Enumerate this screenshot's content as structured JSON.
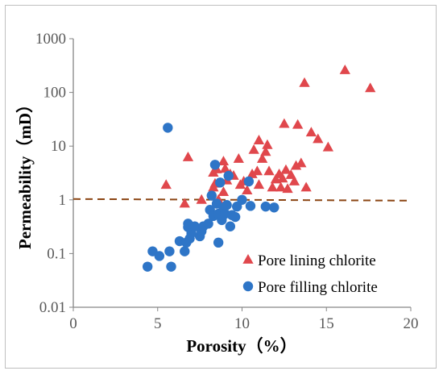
{
  "chart_data": {
    "type": "scatter",
    "xlabel": "Porosity（%）",
    "ylabel": "Permeability（mD）",
    "xlim": [
      0,
      20
    ],
    "ylim": [
      0.01,
      1000
    ],
    "yscale": "log",
    "x_ticks": [
      "0",
      "5",
      "10",
      "15",
      "20"
    ],
    "y_ticks": [
      "0.01",
      "0.1",
      "1",
      "10",
      "100",
      "1000"
    ],
    "grid": false,
    "legend_position": "bottom-right",
    "reference_line": {
      "y": 1,
      "style": "dashed",
      "color": "#8B4513"
    },
    "series": [
      {
        "name": "Pore lining chlorite",
        "marker": "triangle",
        "color": "#E0474C",
        "points": [
          [
            5.5,
            1.9
          ],
          [
            6.6,
            0.85
          ],
          [
            6.8,
            6.2
          ],
          [
            7.6,
            1.0
          ],
          [
            8.3,
            1.7
          ],
          [
            8.3,
            3.2
          ],
          [
            8.4,
            2.0
          ],
          [
            8.5,
            3.7
          ],
          [
            8.6,
            1.0
          ],
          [
            8.9,
            1.4
          ],
          [
            8.9,
            5.2
          ],
          [
            9.0,
            3.8
          ],
          [
            9.1,
            2.3
          ],
          [
            9.3,
            3.0
          ],
          [
            9.5,
            2.8
          ],
          [
            9.8,
            5.8
          ],
          [
            9.9,
            1.9
          ],
          [
            10.1,
            2.2
          ],
          [
            10.3,
            1.5
          ],
          [
            10.6,
            3.0
          ],
          [
            10.7,
            8.5
          ],
          [
            10.9,
            3.4
          ],
          [
            11.0,
            12.8
          ],
          [
            11.0,
            1.9
          ],
          [
            11.2,
            5.8
          ],
          [
            11.4,
            7.8
          ],
          [
            11.5,
            10.5
          ],
          [
            11.6,
            3.4
          ],
          [
            11.8,
            1.7
          ],
          [
            12.0,
            2.4
          ],
          [
            12.2,
            3.0
          ],
          [
            12.3,
            1.7
          ],
          [
            12.4,
            2.5
          ],
          [
            12.5,
            26.0
          ],
          [
            12.6,
            3.6
          ],
          [
            12.7,
            1.6
          ],
          [
            12.9,
            2.9
          ],
          [
            13.1,
            2.2
          ],
          [
            13.2,
            4.3
          ],
          [
            13.3,
            25.0
          ],
          [
            13.5,
            4.8
          ],
          [
            13.7,
            150.0
          ],
          [
            13.8,
            1.7
          ],
          [
            14.1,
            18.0
          ],
          [
            14.5,
            13.5
          ],
          [
            15.1,
            9.5
          ],
          [
            16.1,
            260.0
          ],
          [
            17.6,
            120.0
          ]
        ]
      },
      {
        "name": "Pore filling chlorite",
        "marker": "circle",
        "color": "#2E75C7",
        "points": [
          [
            4.4,
            0.057
          ],
          [
            4.7,
            0.11
          ],
          [
            5.1,
            0.09
          ],
          [
            5.6,
            22.0
          ],
          [
            5.7,
            0.11
          ],
          [
            5.8,
            0.057
          ],
          [
            6.3,
            0.17
          ],
          [
            6.6,
            0.11
          ],
          [
            6.7,
            0.16
          ],
          [
            6.8,
            0.36
          ],
          [
            6.8,
            0.31
          ],
          [
            6.9,
            0.19
          ],
          [
            7.0,
            0.24
          ],
          [
            7.2,
            0.32
          ],
          [
            7.5,
            0.21
          ],
          [
            7.6,
            0.26
          ],
          [
            7.7,
            0.32
          ],
          [
            8.0,
            0.36
          ],
          [
            8.1,
            0.65
          ],
          [
            8.2,
            1.2
          ],
          [
            8.3,
            0.5
          ],
          [
            8.4,
            4.5
          ],
          [
            8.5,
            0.85
          ],
          [
            8.6,
            0.16
          ],
          [
            8.6,
            0.55
          ],
          [
            8.7,
            2.1
          ],
          [
            8.8,
            0.42
          ],
          [
            8.9,
            0.72
          ],
          [
            9.0,
            0.55
          ],
          [
            9.1,
            0.8
          ],
          [
            9.2,
            2.8
          ],
          [
            9.3,
            0.32
          ],
          [
            9.4,
            0.52
          ],
          [
            9.6,
            0.48
          ],
          [
            9.7,
            0.75
          ],
          [
            10.0,
            1.0
          ],
          [
            10.4,
            2.2
          ],
          [
            10.5,
            0.77
          ],
          [
            11.4,
            0.75
          ],
          [
            11.9,
            0.72
          ]
        ]
      }
    ]
  }
}
